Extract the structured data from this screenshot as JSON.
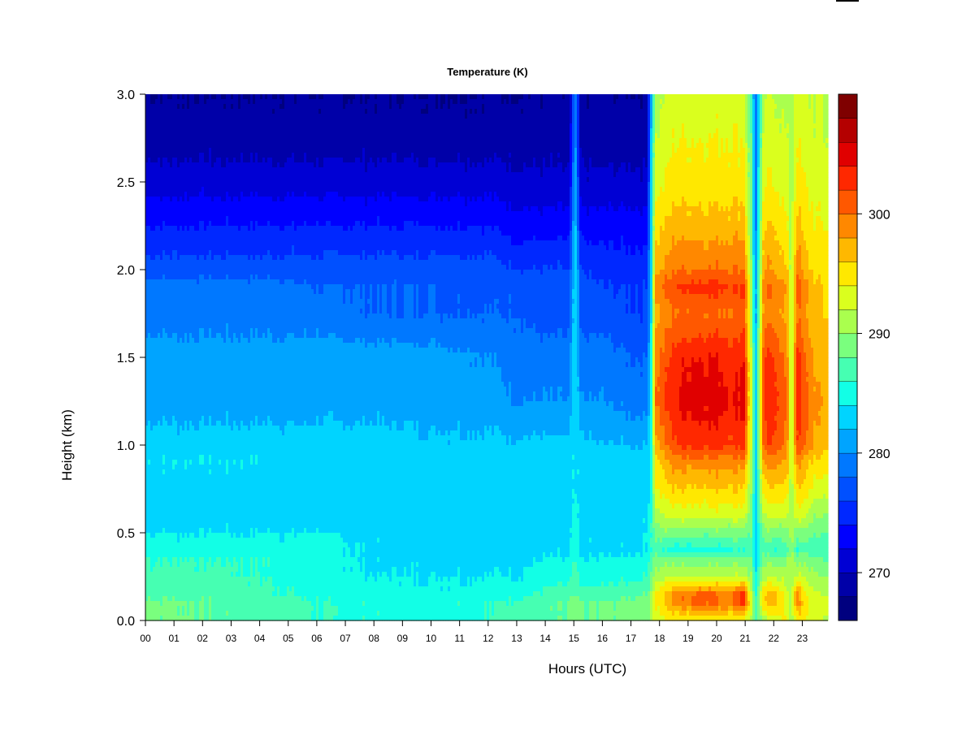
{
  "chart_data": {
    "type": "heatmap",
    "title": "Temperature (K)",
    "xlabel": "Hours (UTC)",
    "ylabel": "Height (km)",
    "xlim": [
      0,
      24
    ],
    "ylim": [
      0,
      3.0
    ],
    "x_ticks": [
      {
        "value": 0,
        "label": "00"
      },
      {
        "value": 1,
        "label": "01"
      },
      {
        "value": 2,
        "label": "02"
      },
      {
        "value": 3,
        "label": "03"
      },
      {
        "value": 4,
        "label": "04"
      },
      {
        "value": 5,
        "label": "05"
      },
      {
        "value": 6,
        "label": "06"
      },
      {
        "value": 7,
        "label": "07"
      },
      {
        "value": 8,
        "label": "08"
      },
      {
        "value": 9,
        "label": "09"
      },
      {
        "value": 10,
        "label": "10"
      },
      {
        "value": 11,
        "label": "11"
      },
      {
        "value": 12,
        "label": "12"
      },
      {
        "value": 13,
        "label": "13"
      },
      {
        "value": 14,
        "label": "14"
      },
      {
        "value": 15,
        "label": "15"
      },
      {
        "value": 16,
        "label": "16"
      },
      {
        "value": 17,
        "label": "17"
      },
      {
        "value": 18,
        "label": "18"
      },
      {
        "value": 19,
        "label": "19"
      },
      {
        "value": 20,
        "label": "20"
      },
      {
        "value": 21,
        "label": "21"
      },
      {
        "value": 22,
        "label": "22"
      },
      {
        "value": 23,
        "label": "23"
      }
    ],
    "y_ticks": [
      {
        "value": 0.0,
        "label": "0.0"
      },
      {
        "value": 0.5,
        "label": "0.5"
      },
      {
        "value": 1.0,
        "label": "1.0"
      },
      {
        "value": 1.5,
        "label": "1.5"
      },
      {
        "value": 2.0,
        "label": "2.0"
      },
      {
        "value": 2.5,
        "label": "2.5"
      },
      {
        "value": 3.0,
        "label": "3.0"
      }
    ],
    "colorbar": {
      "min": 266,
      "step": 2,
      "colors": [
        "#00007F",
        "#0000A8",
        "#0000D4",
        "#0000FF",
        "#0028FF",
        "#0050FF",
        "#0078FF",
        "#00A4FF",
        "#00D4FF",
        "#12FFE6",
        "#46FFB2",
        "#7AFF7E",
        "#AAFF4E",
        "#DAFF1E",
        "#FFE800",
        "#FFB800",
        "#FF8800",
        "#FF5800",
        "#FF2800",
        "#E00000",
        "#B40000",
        "#7F0000"
      ],
      "ticks": [
        {
          "value": 270,
          "label": "270"
        },
        {
          "value": 280,
          "label": "280"
        },
        {
          "value": 290,
          "label": "290"
        },
        {
          "value": 300,
          "label": "300"
        }
      ]
    },
    "times_h": [
      0,
      2,
      4,
      6,
      8,
      10,
      12,
      13,
      14,
      14.8,
      15.0,
      15.2,
      16,
      17,
      17.5,
      17.65,
      17.8,
      18.5,
      19,
      19.5,
      20,
      20.5,
      20.9,
      21.15,
      21.3,
      21.6,
      22,
      22.4,
      22.55,
      22.75,
      23,
      23.5,
      23.83
    ],
    "heights_km": [
      0.0,
      0.1,
      0.15,
      0.25,
      0.35,
      0.4,
      0.5,
      0.6,
      0.75,
      0.9,
      1.0,
      1.25,
      1.5,
      1.75,
      1.9,
      2.0,
      2.25,
      2.5,
      2.75,
      3.0
    ],
    "temperature_K": [
      [
        288.5,
        288.5,
        287.5,
        286.5,
        286,
        285,
        284,
        283,
        283,
        284,
        283,
        281,
        281,
        279,
        279,
        277,
        274,
        271,
        269,
        268
      ],
      [
        288,
        288,
        287.5,
        286.5,
        286,
        285,
        284,
        283,
        283,
        284,
        283,
        281,
        281,
        279,
        279,
        277,
        274,
        271,
        269,
        268
      ],
      [
        287,
        287,
        286.5,
        286,
        286,
        285,
        284,
        283,
        283,
        284,
        283,
        281,
        281,
        279,
        279,
        277,
        274,
        271,
        269,
        268
      ],
      [
        286,
        286,
        285.5,
        285,
        285,
        285,
        284,
        283,
        283,
        283,
        283,
        281,
        281,
        279,
        278,
        277,
        274,
        271,
        269,
        268
      ],
      [
        285.5,
        285.5,
        285,
        284,
        283.5,
        283.5,
        283.5,
        283,
        283,
        283,
        283,
        281,
        281,
        278,
        278,
        277,
        274,
        271,
        269,
        268
      ],
      [
        285.5,
        285.5,
        284.5,
        284,
        283.5,
        283.5,
        283.5,
        283,
        283,
        283,
        282.5,
        281,
        281,
        278,
        278,
        277,
        274,
        271,
        269,
        268
      ],
      [
        286,
        286,
        285,
        284,
        283.5,
        283.5,
        283.5,
        283,
        283,
        283,
        282.5,
        281,
        280,
        278,
        277.5,
        277,
        274,
        271,
        269,
        268
      ],
      [
        286.5,
        286.5,
        285.5,
        284,
        283.5,
        283.5,
        283.5,
        283,
        283,
        283,
        282.5,
        280,
        279,
        278,
        277.5,
        276,
        273,
        270.5,
        269,
        268
      ],
      [
        287.5,
        287.5,
        286.5,
        285,
        284,
        283.5,
        283.5,
        283,
        283,
        283,
        282.5,
        280,
        279,
        277,
        277,
        276,
        273,
        270.5,
        269,
        268
      ],
      [
        288,
        288,
        287,
        285,
        284,
        283.5,
        283.5,
        283,
        283,
        283,
        282.5,
        280,
        279,
        277,
        277,
        276,
        273,
        270.5,
        269,
        268
      ],
      [
        289,
        289,
        288,
        287,
        286,
        285.5,
        285,
        284.5,
        284,
        284,
        284,
        284,
        284,
        284,
        284,
        284,
        283,
        282,
        281,
        281
      ],
      [
        288,
        288,
        287,
        285,
        284,
        283.5,
        283.5,
        283,
        283,
        283,
        282.5,
        280,
        279,
        277,
        277,
        276,
        273,
        270.5,
        269,
        268
      ],
      [
        288,
        288,
        287,
        285,
        284,
        283.5,
        283.5,
        283,
        283,
        283,
        282,
        280,
        279,
        277,
        276,
        275,
        273,
        270.5,
        269,
        268
      ],
      [
        288.5,
        288.5,
        287.5,
        285.5,
        284.5,
        283.5,
        283.5,
        283,
        283,
        283,
        282,
        279,
        278,
        276,
        276,
        275,
        273,
        270.5,
        269,
        268
      ],
      [
        289,
        289,
        288,
        286,
        285,
        284,
        284,
        283.5,
        283,
        283,
        282,
        279,
        278,
        276,
        276,
        275,
        273,
        270.5,
        269,
        268
      ],
      [
        291,
        291,
        290,
        288.5,
        287,
        286,
        286,
        285.5,
        285,
        285,
        284.5,
        284,
        283.5,
        283,
        283,
        283,
        282.5,
        282,
        281.5,
        281
      ],
      [
        293,
        294,
        294,
        291,
        289,
        287,
        289,
        291,
        294,
        295,
        297,
        300,
        299,
        297,
        299,
        297,
        295,
        293,
        292,
        291
      ],
      [
        294,
        299,
        299,
        292,
        289,
        285,
        289,
        293,
        296,
        299,
        302,
        304,
        303,
        300,
        302,
        300,
        297,
        295,
        294,
        293
      ],
      [
        294,
        300,
        300,
        292,
        289,
        285,
        289,
        293,
        296,
        299,
        303,
        305,
        304,
        300,
        303,
        300,
        297,
        295,
        294,
        293
      ],
      [
        294,
        301,
        301,
        292,
        289,
        285,
        289,
        293,
        296,
        299,
        303,
        305,
        304,
        300,
        303,
        300,
        297,
        295,
        294,
        293
      ],
      [
        294,
        300,
        300,
        292,
        289,
        285,
        289,
        293,
        296,
        299,
        303,
        305,
        304,
        300,
        303,
        300,
        297,
        295,
        294,
        293
      ],
      [
        294,
        300,
        300,
        292,
        289,
        286,
        289,
        293,
        296,
        299,
        302,
        304,
        303,
        300,
        302,
        300,
        297,
        295,
        294,
        293
      ],
      [
        294,
        303,
        303,
        292,
        289,
        286,
        289,
        293,
        296,
        299,
        303,
        305,
        304,
        301,
        303,
        300,
        297,
        295,
        294,
        293
      ],
      [
        291,
        293,
        292,
        290,
        288,
        287,
        288,
        289,
        290,
        291,
        292,
        292,
        292,
        291,
        291,
        290,
        289,
        288,
        288,
        287
      ],
      [
        286,
        286,
        285,
        284,
        283.5,
        283.5,
        283.5,
        283,
        283,
        283,
        283,
        282,
        282,
        281,
        281,
        280,
        279,
        279,
        278,
        278
      ],
      [
        291,
        296,
        296,
        291,
        289,
        287,
        289,
        292,
        295,
        298,
        301,
        303,
        302,
        299,
        300,
        298,
        296,
        294,
        293,
        292
      ],
      [
        294,
        297,
        297,
        292,
        289,
        286,
        289,
        293,
        296,
        299,
        302,
        303,
        302,
        299,
        300,
        298,
        296,
        294,
        293,
        292
      ],
      [
        294,
        293,
        292,
        291,
        289,
        287,
        289,
        292,
        295,
        297,
        299,
        300,
        299,
        297,
        298,
        296,
        294,
        293,
        292,
        291
      ],
      [
        291,
        291,
        291,
        291,
        291,
        291,
        291,
        291,
        291,
        291,
        291,
        291,
        291,
        291,
        291,
        291,
        291,
        291,
        291,
        291
      ],
      [
        294,
        300,
        300,
        292,
        289,
        286,
        289,
        293,
        296,
        299,
        302,
        304,
        303,
        300,
        302,
        300,
        297,
        295,
        294,
        293
      ],
      [
        294,
        295,
        294,
        292,
        289,
        287,
        289,
        292,
        295,
        297,
        300,
        301,
        300,
        298,
        299,
        297,
        295,
        294,
        293,
        292
      ],
      [
        292,
        293,
        292,
        290,
        288,
        287,
        288,
        290,
        293,
        295,
        297,
        298,
        297,
        296,
        296,
        295,
        294,
        293,
        292,
        292
      ],
      [
        292,
        293,
        292,
        290,
        288,
        287,
        288,
        290,
        293,
        295,
        297,
        298,
        297,
        296,
        296,
        295,
        294,
        293,
        292,
        292
      ]
    ]
  }
}
